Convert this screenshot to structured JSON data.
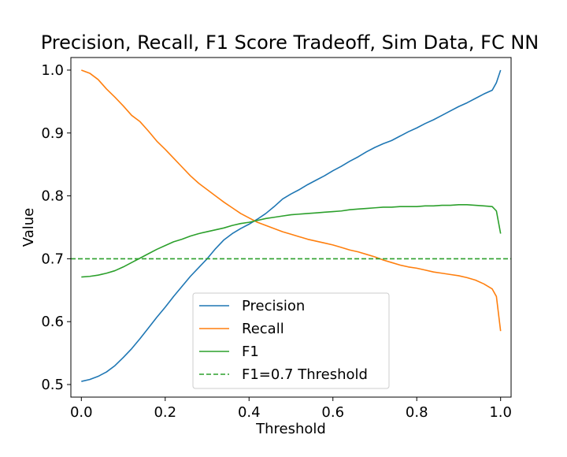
{
  "chart_data": {
    "type": "line",
    "title": "Precision, Recall, F1 Score Tradeoff, Sim Data, FC NN",
    "xlabel": "Threshold",
    "ylabel": "Value",
    "xlim": [
      -0.025,
      1.025
    ],
    "ylim": [
      0.48,
      1.02
    ],
    "xticks": [
      0.0,
      0.2,
      0.4,
      0.6,
      0.8,
      1.0
    ],
    "xtick_labels": [
      "0.0",
      "0.2",
      "0.4",
      "0.6",
      "0.8",
      "1.0"
    ],
    "yticks": [
      0.5,
      0.6,
      0.7,
      0.8,
      0.9,
      1.0
    ],
    "ytick_labels": [
      "0.5",
      "0.6",
      "0.7",
      "0.8",
      "0.9",
      "1.0"
    ],
    "grid": false,
    "legend_position": "lower center",
    "series": [
      {
        "name": "Precision",
        "color": "#1f77b4",
        "x": [
          0.0,
          0.02,
          0.04,
          0.06,
          0.08,
          0.1,
          0.12,
          0.14,
          0.16,
          0.18,
          0.2,
          0.22,
          0.24,
          0.26,
          0.28,
          0.3,
          0.32,
          0.34,
          0.36,
          0.38,
          0.4,
          0.42,
          0.44,
          0.46,
          0.48,
          0.5,
          0.52,
          0.54,
          0.56,
          0.58,
          0.6,
          0.62,
          0.64,
          0.66,
          0.68,
          0.7,
          0.72,
          0.74,
          0.76,
          0.78,
          0.8,
          0.82,
          0.84,
          0.86,
          0.88,
          0.9,
          0.92,
          0.94,
          0.96,
          0.98,
          0.99,
          1.0
        ],
        "values": [
          0.505,
          0.508,
          0.513,
          0.52,
          0.53,
          0.543,
          0.557,
          0.573,
          0.59,
          0.607,
          0.623,
          0.64,
          0.656,
          0.672,
          0.686,
          0.7,
          0.716,
          0.73,
          0.74,
          0.748,
          0.755,
          0.763,
          0.772,
          0.783,
          0.795,
          0.803,
          0.81,
          0.818,
          0.825,
          0.832,
          0.84,
          0.847,
          0.855,
          0.862,
          0.87,
          0.877,
          0.883,
          0.888,
          0.895,
          0.902,
          0.908,
          0.915,
          0.921,
          0.928,
          0.935,
          0.942,
          0.948,
          0.955,
          0.962,
          0.968,
          0.98,
          1.0
        ]
      },
      {
        "name": "Recall",
        "color": "#ff7f0e",
        "x": [
          0.0,
          0.02,
          0.04,
          0.06,
          0.08,
          0.1,
          0.12,
          0.14,
          0.16,
          0.18,
          0.2,
          0.22,
          0.24,
          0.26,
          0.28,
          0.3,
          0.32,
          0.34,
          0.36,
          0.38,
          0.4,
          0.42,
          0.44,
          0.46,
          0.48,
          0.5,
          0.52,
          0.54,
          0.56,
          0.58,
          0.6,
          0.62,
          0.64,
          0.66,
          0.68,
          0.7,
          0.72,
          0.74,
          0.76,
          0.78,
          0.8,
          0.82,
          0.84,
          0.86,
          0.88,
          0.9,
          0.92,
          0.94,
          0.96,
          0.98,
          0.99,
          1.0
        ],
        "values": [
          1.0,
          0.995,
          0.985,
          0.97,
          0.957,
          0.943,
          0.928,
          0.918,
          0.903,
          0.887,
          0.874,
          0.86,
          0.846,
          0.832,
          0.82,
          0.81,
          0.8,
          0.79,
          0.781,
          0.772,
          0.765,
          0.758,
          0.753,
          0.748,
          0.743,
          0.739,
          0.735,
          0.731,
          0.728,
          0.725,
          0.722,
          0.718,
          0.714,
          0.711,
          0.707,
          0.703,
          0.698,
          0.694,
          0.69,
          0.687,
          0.685,
          0.682,
          0.679,
          0.677,
          0.675,
          0.673,
          0.67,
          0.666,
          0.66,
          0.652,
          0.64,
          0.585
        ]
      },
      {
        "name": "F1",
        "color": "#2ca02c",
        "x": [
          0.0,
          0.02,
          0.04,
          0.06,
          0.08,
          0.1,
          0.12,
          0.14,
          0.16,
          0.18,
          0.2,
          0.22,
          0.24,
          0.26,
          0.28,
          0.3,
          0.32,
          0.34,
          0.36,
          0.38,
          0.4,
          0.42,
          0.44,
          0.46,
          0.48,
          0.5,
          0.52,
          0.54,
          0.56,
          0.58,
          0.6,
          0.62,
          0.64,
          0.66,
          0.68,
          0.7,
          0.72,
          0.74,
          0.76,
          0.78,
          0.8,
          0.82,
          0.84,
          0.86,
          0.88,
          0.9,
          0.92,
          0.94,
          0.96,
          0.98,
          0.99,
          1.0
        ],
        "values": [
          0.671,
          0.672,
          0.674,
          0.677,
          0.681,
          0.687,
          0.694,
          0.701,
          0.708,
          0.715,
          0.721,
          0.727,
          0.731,
          0.736,
          0.74,
          0.743,
          0.746,
          0.749,
          0.753,
          0.756,
          0.758,
          0.761,
          0.764,
          0.766,
          0.768,
          0.77,
          0.771,
          0.772,
          0.773,
          0.774,
          0.775,
          0.776,
          0.778,
          0.779,
          0.78,
          0.781,
          0.782,
          0.782,
          0.783,
          0.783,
          0.783,
          0.784,
          0.784,
          0.785,
          0.785,
          0.786,
          0.786,
          0.785,
          0.784,
          0.783,
          0.776,
          0.74
        ]
      },
      {
        "name": "F1=0.7 Threshold",
        "color": "#2ca02c",
        "dashed": true,
        "y": 0.7
      }
    ]
  }
}
